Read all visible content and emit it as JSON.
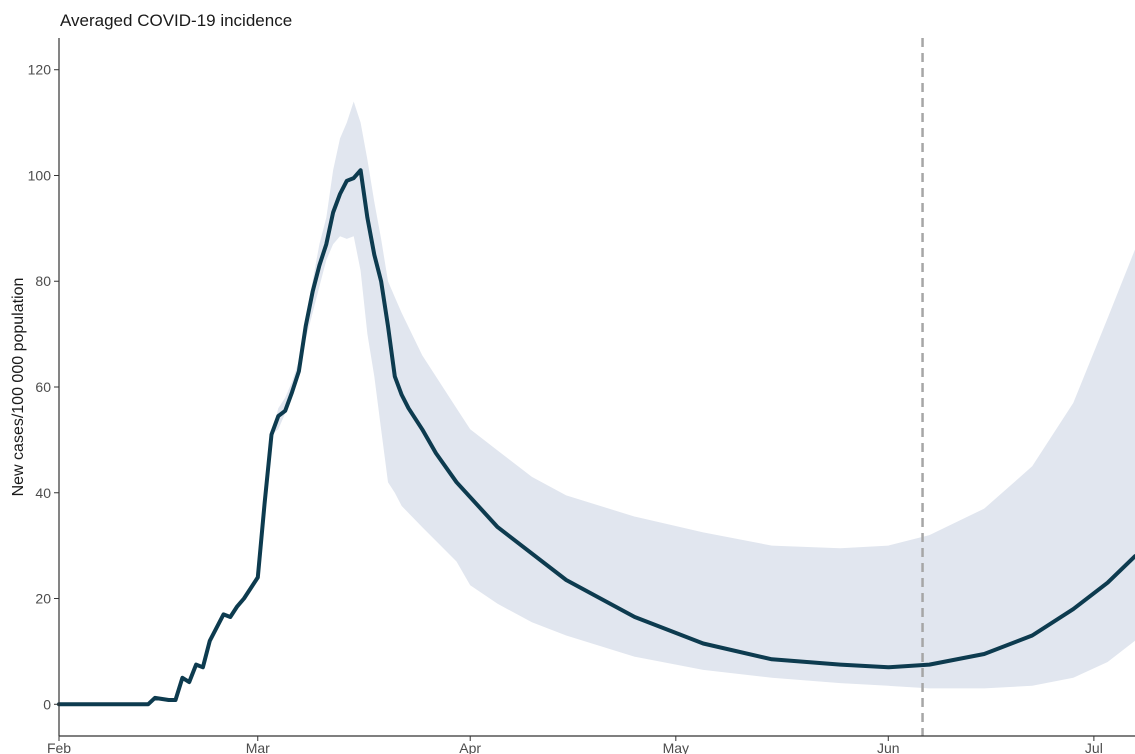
{
  "chart_data": {
    "type": "line",
    "title": "Averaged COVID-19 incidence",
    "xlabel": "",
    "ylabel": "New cases/100 000 population",
    "ylim": [
      -6,
      126
    ],
    "xlim": [
      "2020-02-01",
      "2020-07-07"
    ],
    "grid": false,
    "colors": {
      "line": "#0d3b4f",
      "band": "#e1e6ef",
      "vline": "#a6a6a6",
      "axis": "#333333"
    },
    "x_ticks": [
      {
        "date": "2020-02-01",
        "label": "Feb"
      },
      {
        "date": "2020-03-01",
        "label": "Mar"
      },
      {
        "date": "2020-04-01",
        "label": "Apr"
      },
      {
        "date": "2020-05-01",
        "label": "May"
      },
      {
        "date": "2020-06-01",
        "label": "Jun"
      },
      {
        "date": "2020-07-01",
        "label": "Jul"
      }
    ],
    "y_ticks": [
      0,
      20,
      40,
      60,
      80,
      100,
      120
    ],
    "reference_line": {
      "x": "2020-06-06",
      "style": "dashed"
    },
    "series": [
      {
        "type": "line",
        "x": [
          "2020-02-01",
          "2020-02-14",
          "2020-02-15",
          "2020-02-17",
          "2020-02-18",
          "2020-02-19",
          "2020-02-20",
          "2020-02-21",
          "2020-02-22",
          "2020-02-23",
          "2020-02-25",
          "2020-02-26",
          "2020-02-27",
          "2020-02-28",
          "2020-03-01",
          "2020-03-02",
          "2020-03-03",
          "2020-03-04",
          "2020-03-05",
          "2020-03-06",
          "2020-03-07",
          "2020-03-08",
          "2020-03-09",
          "2020-03-10",
          "2020-03-11",
          "2020-03-12",
          "2020-03-13",
          "2020-03-14",
          "2020-03-15",
          "2020-03-16",
          "2020-03-17",
          "2020-03-18",
          "2020-03-19",
          "2020-03-20",
          "2020-03-21",
          "2020-03-22",
          "2020-03-23",
          "2020-03-25",
          "2020-03-27",
          "2020-03-30",
          "2020-04-05",
          "2020-04-15",
          "2020-04-25",
          "2020-05-05",
          "2020-05-15",
          "2020-05-25",
          "2020-06-01",
          "2020-06-07",
          "2020-06-15",
          "2020-06-22",
          "2020-06-28",
          "2020-07-03",
          "2020-07-07"
        ],
        "y": [
          0,
          0,
          1.2,
          0.8,
          0.8,
          5,
          4.2,
          7.5,
          7,
          12,
          17,
          16.5,
          18.5,
          20,
          24,
          38,
          51,
          54.5,
          55.5,
          59,
          63,
          71.5,
          78,
          83,
          87,
          93,
          96.5,
          99,
          99.5,
          101,
          92,
          85,
          80,
          71.5,
          62,
          58.5,
          56,
          52,
          47.5,
          42,
          33.5,
          23.5,
          16.5,
          11.5,
          8.5,
          7.5,
          7,
          7.5,
          9.5,
          13,
          18,
          23,
          28
        ]
      },
      {
        "type": "band",
        "x": [
          "2020-02-01",
          "2020-02-14",
          "2020-02-15",
          "2020-02-17",
          "2020-02-18",
          "2020-02-19",
          "2020-02-20",
          "2020-02-21",
          "2020-02-22",
          "2020-02-23",
          "2020-02-25",
          "2020-02-26",
          "2020-02-27",
          "2020-02-28",
          "2020-03-01",
          "2020-03-02",
          "2020-03-03",
          "2020-03-04",
          "2020-03-05",
          "2020-03-06",
          "2020-03-07",
          "2020-03-08",
          "2020-03-09",
          "2020-03-10",
          "2020-03-11",
          "2020-03-12",
          "2020-03-13",
          "2020-03-14",
          "2020-03-15",
          "2020-03-16",
          "2020-03-17",
          "2020-03-18",
          "2020-03-19",
          "2020-03-20",
          "2020-03-21",
          "2020-03-22",
          "2020-03-25",
          "2020-03-30",
          "2020-04-01",
          "2020-04-05",
          "2020-04-10",
          "2020-04-15",
          "2020-04-25",
          "2020-05-05",
          "2020-05-15",
          "2020-05-25",
          "2020-06-01",
          "2020-06-07",
          "2020-06-15",
          "2020-06-22",
          "2020-06-28",
          "2020-07-03",
          "2020-07-07"
        ],
        "low": [
          0,
          0,
          1.2,
          0.8,
          0.8,
          5,
          4.2,
          7.5,
          7,
          12,
          17,
          16.5,
          18.5,
          20,
          24,
          38,
          51,
          52,
          55,
          58,
          62,
          69,
          74,
          79,
          84,
          87,
          88.5,
          88,
          88.5,
          82,
          70,
          62,
          52,
          42,
          40,
          37.5,
          33.5,
          27,
          22.5,
          19,
          15.5,
          13,
          9,
          6.5,
          5,
          4,
          3.5,
          3,
          3,
          3.5,
          5,
          8,
          12
        ],
        "high": [
          0,
          0,
          1.2,
          0.8,
          0.8,
          5,
          4.2,
          7.5,
          7,
          12,
          17,
          16.5,
          18.5,
          20,
          24,
          38,
          51,
          56,
          58,
          61,
          65,
          73,
          80,
          87,
          92,
          101,
          107,
          110,
          114,
          110,
          103,
          95,
          88,
          80,
          77,
          74,
          66,
          56,
          52,
          48,
          43,
          39.5,
          35.5,
          32.5,
          30,
          29.5,
          30,
          32,
          37,
          45,
          57,
          73,
          86
        ]
      }
    ]
  }
}
